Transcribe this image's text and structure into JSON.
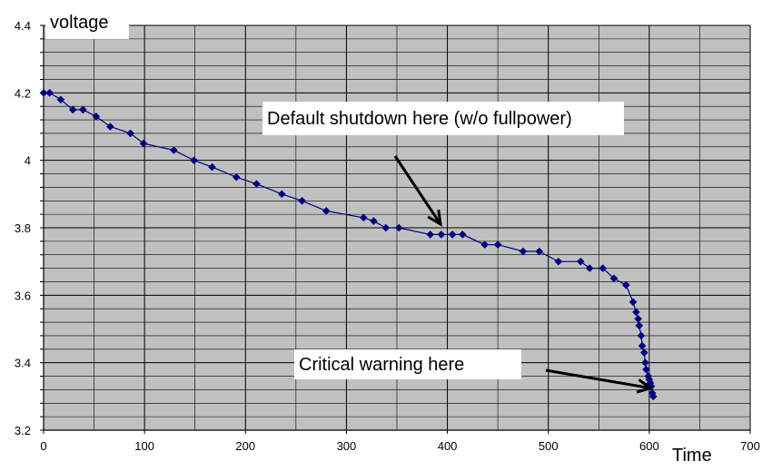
{
  "chart_data": {
    "type": "line",
    "ylabel": "voltage",
    "xlabel": "Time",
    "xlim": [
      0,
      700
    ],
    "ylim": [
      3.2,
      4.4
    ],
    "x_ticks": [
      0,
      100,
      200,
      300,
      400,
      500,
      600,
      700
    ],
    "x_tick_labels": [
      "0",
      "100",
      "200",
      "300",
      "400",
      "500",
      "600",
      "700"
    ],
    "y_ticks": [
      3.2,
      3.4,
      3.6,
      3.8,
      4.0,
      4.2,
      4.4
    ],
    "y_tick_labels": [
      "3.2",
      "3.4",
      "3.6",
      "3.8",
      "4",
      "4.2",
      "4.4"
    ],
    "grid": true,
    "background_color": "#c0c0c0",
    "series": [
      {
        "color": "#000080",
        "marker": "diamond",
        "x": [
          0,
          6,
          17,
          29,
          39,
          52,
          66,
          86,
          99,
          129,
          149,
          167,
          191,
          211,
          236,
          256,
          280,
          317,
          327,
          339,
          352,
          383,
          394,
          405,
          415,
          437,
          450,
          475,
          491,
          510,
          532,
          541,
          554,
          565,
          577,
          584,
          587,
          589,
          590,
          592,
          593,
          595,
          596,
          597,
          599,
          600,
          601,
          602,
          603,
          604
        ],
        "y": [
          4.2,
          4.2,
          4.18,
          4.15,
          4.15,
          4.13,
          4.1,
          4.08,
          4.05,
          4.03,
          4.0,
          3.98,
          3.95,
          3.93,
          3.9,
          3.88,
          3.85,
          3.83,
          3.82,
          3.8,
          3.8,
          3.78,
          3.78,
          3.78,
          3.78,
          3.75,
          3.75,
          3.73,
          3.73,
          3.7,
          3.7,
          3.68,
          3.68,
          3.65,
          3.63,
          3.58,
          3.55,
          3.53,
          3.51,
          3.48,
          3.45,
          3.43,
          3.4,
          3.38,
          3.36,
          3.35,
          3.34,
          3.33,
          3.31,
          3.3
        ]
      }
    ],
    "annotations": [
      {
        "text": "Default shutdown here (w/o fullpower)",
        "arrow_to": {
          "x": 395,
          "y": 3.8
        }
      },
      {
        "text": "Critical warning here",
        "arrow_to": {
          "x": 605,
          "y": 3.33
        }
      }
    ]
  }
}
